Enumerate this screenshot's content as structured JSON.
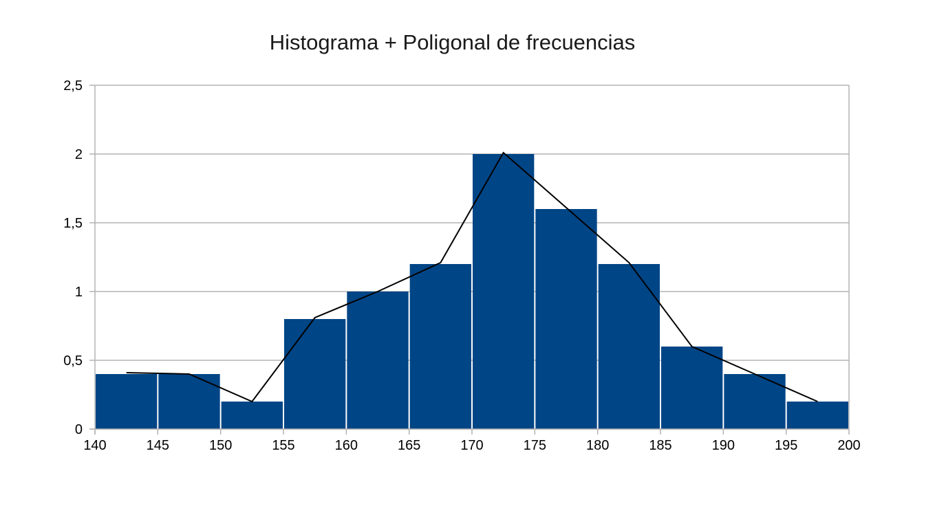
{
  "chart_data": {
    "type": "bar",
    "title": "Histograma + Poligonal de frecuencias",
    "xlabel": "",
    "ylabel": "",
    "x_ticks": [
      "140",
      "145",
      "150",
      "155",
      "160",
      "165",
      "170",
      "175",
      "180",
      "185",
      "190",
      "195",
      "200"
    ],
    "y_ticks": [
      "0",
      "0,5",
      "1",
      "1,5",
      "2",
      "2,5"
    ],
    "xlim": [
      140,
      200
    ],
    "ylim": [
      0,
      2.5
    ],
    "grid": true,
    "bins": [
      {
        "start": 140,
        "end": 145,
        "value": 0.4
      },
      {
        "start": 145,
        "end": 150,
        "value": 0.4
      },
      {
        "start": 150,
        "end": 155,
        "value": 0.2
      },
      {
        "start": 155,
        "end": 160,
        "value": 0.8
      },
      {
        "start": 160,
        "end": 165,
        "value": 1.0
      },
      {
        "start": 165,
        "end": 170,
        "value": 1.2
      },
      {
        "start": 170,
        "end": 175,
        "value": 2.0
      },
      {
        "start": 175,
        "end": 180,
        "value": 1.6
      },
      {
        "start": 180,
        "end": 185,
        "value": 1.2
      },
      {
        "start": 185,
        "end": 190,
        "value": 0.6
      },
      {
        "start": 190,
        "end": 195,
        "value": 0.4
      },
      {
        "start": 195,
        "end": 200,
        "value": 0.2
      }
    ],
    "polygon": [
      {
        "x": 142.5,
        "y": 0.41
      },
      {
        "x": 147.5,
        "y": 0.4
      },
      {
        "x": 152.5,
        "y": 0.2
      },
      {
        "x": 157.5,
        "y": 0.81
      },
      {
        "x": 162.5,
        "y": 1.0
      },
      {
        "x": 167.5,
        "y": 1.21
      },
      {
        "x": 172.5,
        "y": 2.01
      },
      {
        "x": 177.5,
        "y": 1.61
      },
      {
        "x": 182.5,
        "y": 1.21
      },
      {
        "x": 187.5,
        "y": 0.6
      },
      {
        "x": 192.5,
        "y": 0.4
      },
      {
        "x": 197.5,
        "y": 0.2
      }
    ],
    "colors": {
      "bar": "#004586",
      "polygon": "#000000",
      "grid": "#b3b3b3"
    }
  }
}
